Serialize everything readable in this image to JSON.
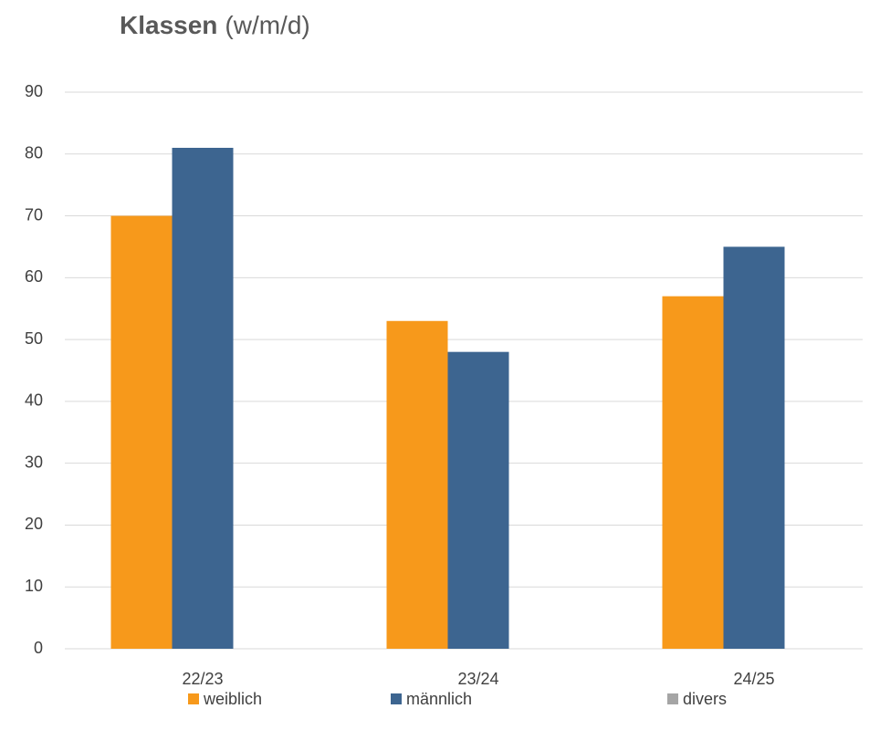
{
  "chart_data": {
    "type": "bar",
    "title": "Klassen",
    "subtitle": "(w/m/d)",
    "categories": [
      "22/23",
      "23/24",
      "24/25"
    ],
    "series": [
      {
        "name": "weiblich",
        "color": "#f7991b",
        "values": [
          70,
          53,
          57
        ]
      },
      {
        "name": "männlich",
        "color": "#3d6590",
        "values": [
          81,
          48,
          65
        ]
      },
      {
        "name": "divers",
        "color": "#a5a5a5",
        "values": [
          0,
          0,
          0
        ]
      }
    ],
    "ylim": [
      0,
      90
    ],
    "yticks": [
      0,
      10,
      20,
      30,
      40,
      50,
      60,
      70,
      80,
      90
    ],
    "grid": true,
    "legend": "bottom"
  }
}
